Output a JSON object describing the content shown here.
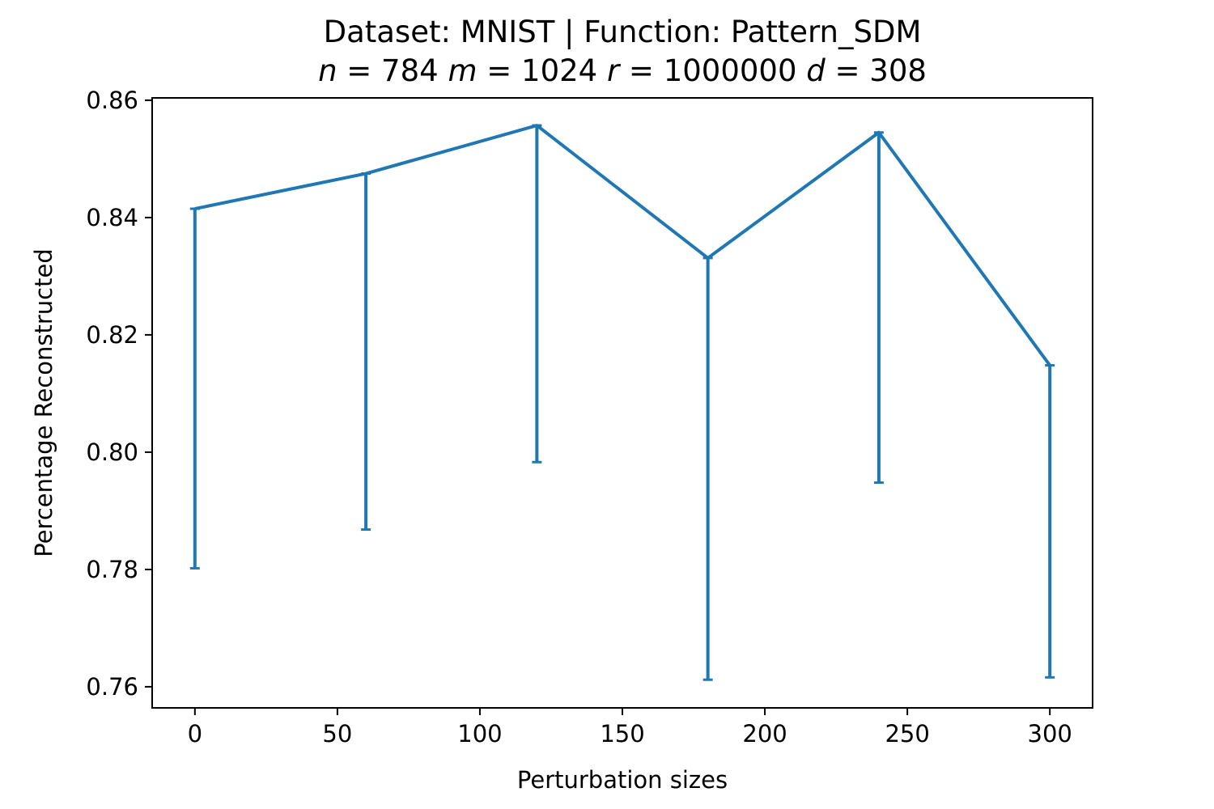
{
  "chart_data": {
    "type": "line",
    "title": "Dataset: MNIST | Function: Pattern_SDM",
    "subtitle_parts": [
      {
        "text": "n",
        "italic": true
      },
      {
        "text": " = 784 ",
        "italic": false
      },
      {
        "text": "m",
        "italic": true
      },
      {
        "text": " = 1024 ",
        "italic": false
      },
      {
        "text": "r",
        "italic": true
      },
      {
        "text": " = 1000000 ",
        "italic": false
      },
      {
        "text": "d",
        "italic": true
      },
      {
        "text": " = 308",
        "italic": false
      }
    ],
    "xlabel": "Perturbation sizes",
    "ylabel": "Percentage Reconstructed",
    "xlim": [
      -15,
      315
    ],
    "ylim": [
      0.7564,
      0.8604
    ],
    "xticks": [
      0,
      50,
      100,
      150,
      200,
      250,
      300
    ],
    "xtick_labels": [
      "0",
      "50",
      "100",
      "150",
      "200",
      "250",
      "300"
    ],
    "yticks": [
      0.76,
      0.78,
      0.8,
      0.82,
      0.84,
      0.86
    ],
    "ytick_labels": [
      "0.76",
      "0.78",
      "0.80",
      "0.82",
      "0.84",
      "0.86"
    ],
    "grid": false,
    "series": [
      {
        "color": "#1f77b4",
        "x": [
          0,
          60,
          120,
          180,
          240,
          300
        ],
        "y": [
          0.8415,
          0.8475,
          0.8557,
          0.8331,
          0.8545,
          0.8148
        ],
        "error_lower": [
          0.7802,
          0.7868,
          0.7983,
          0.7612,
          0.7948,
          0.7616
        ],
        "error_upper": [
          0.8415,
          0.8475,
          0.8557,
          0.8331,
          0.8545,
          0.8148
        ]
      }
    ]
  }
}
